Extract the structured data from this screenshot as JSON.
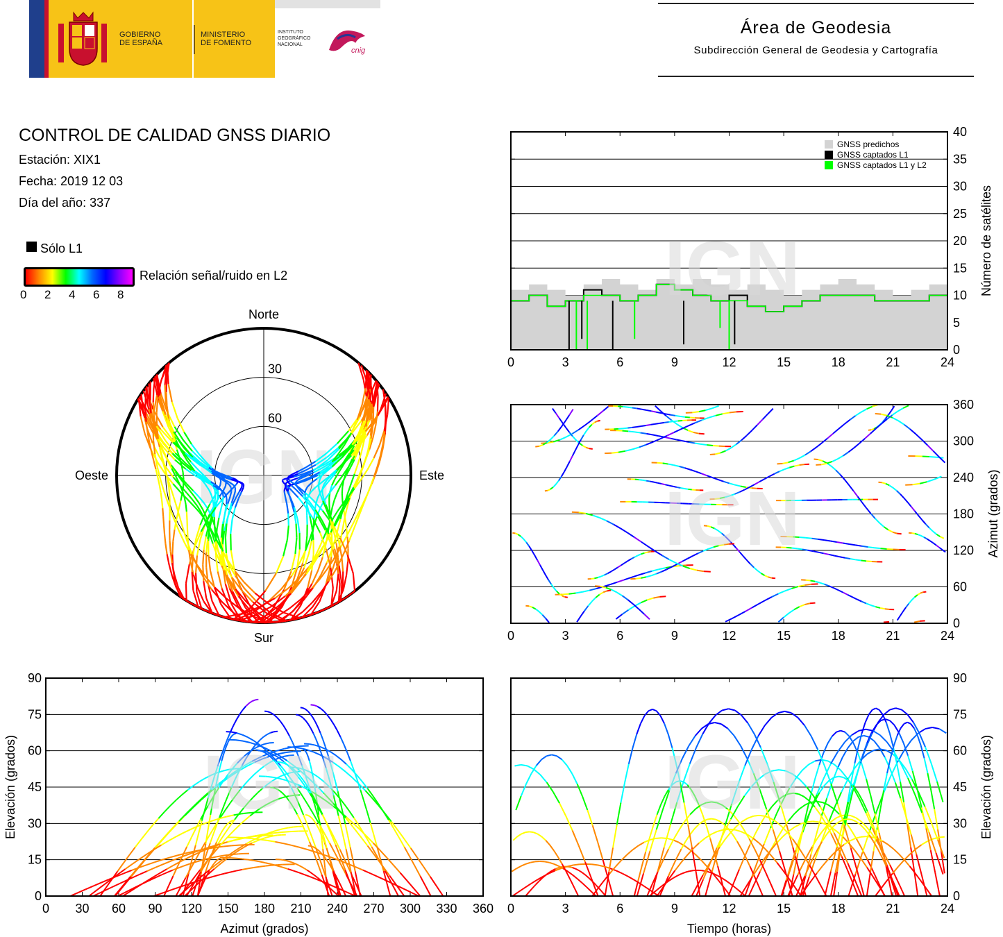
{
  "header": {
    "gobierno": "GOBIERNO\nDE ESPAÑA",
    "ministerio": "MINISTERIO\nDE FOMENTO",
    "instituto": "INSTITUTO\nGEOGRÁFICO\nNACIONAL",
    "cnig": "cnig",
    "area_title": "Área de Geodesia",
    "area_subtitle": "Subdirección General de Geodesia y Cartografía"
  },
  "info": {
    "title": "CONTROL DE CALIDAD GNSS DIARIO",
    "station": "Estación: XIX1",
    "date": "Fecha: 2019 12 03",
    "doy": "Día del año: 337",
    "solo_l1": "Sólo L1",
    "snr_label": "Relación señal/ruido en L2",
    "snr_ticks": [
      "0",
      "2",
      "4",
      "6",
      "8"
    ]
  },
  "watermark": "IGN",
  "colors": {
    "predicted": "#d3d3d3",
    "l1": "#000000",
    "l1l2": "#00ff00",
    "snr_scale": [
      "#ff0000",
      "#ff8800",
      "#ffff00",
      "#00ff00",
      "#00ffff",
      "#0066ff",
      "#0000ff",
      "#8800ff",
      "#ff00ff"
    ]
  },
  "chart_data": [
    {
      "id": "sat_count",
      "type": "area",
      "ylabel": "Número de satélites",
      "xlim": [
        0,
        24
      ],
      "ylim": [
        0,
        40
      ],
      "xticks": [
        "0",
        "3",
        "6",
        "9",
        "12",
        "15",
        "18",
        "21",
        "24"
      ],
      "yticks": [
        "0",
        "5",
        "10",
        "15",
        "20",
        "25",
        "30",
        "35",
        "40"
      ],
      "legend": {
        "placement": "top-right",
        "entries": [
          "GNSS predichos",
          "GNSS captados L1",
          "GNSS captados L1 y L2"
        ]
      },
      "x": [
        0,
        1,
        2,
        3,
        4,
        5,
        6,
        7,
        8,
        9,
        10,
        11,
        12,
        13,
        14,
        15,
        16,
        17,
        18,
        19,
        20,
        21,
        22,
        23,
        24
      ],
      "series": [
        {
          "name": "GNSS predichos",
          "values": [
            11,
            12,
            11,
            10,
            12,
            13,
            12,
            11,
            13,
            12,
            13,
            12,
            11,
            12,
            11,
            10,
            11,
            12,
            13,
            12,
            11,
            10,
            11,
            12,
            11
          ]
        },
        {
          "name": "GNSS captados L1",
          "values": [
            9,
            10,
            8,
            9,
            11,
            10,
            9,
            10,
            12,
            11,
            10,
            9,
            10,
            8,
            7,
            8,
            9,
            10,
            10,
            10,
            9,
            9,
            9,
            10,
            9
          ]
        },
        {
          "name": "GNSS captados L1 y L2",
          "values": [
            9,
            10,
            8,
            9,
            10,
            10,
            9,
            10,
            12,
            11,
            10,
            9,
            9,
            8,
            7,
            8,
            9,
            10,
            10,
            10,
            9,
            9,
            9,
            10,
            9
          ]
        }
      ]
    },
    {
      "id": "skyplot",
      "type": "scatter",
      "directions": {
        "north": "Norte",
        "south": "Sur",
        "east": "Este",
        "west": "Oeste"
      },
      "ring_labels": [
        "30",
        "60"
      ]
    },
    {
      "id": "azimut_time",
      "type": "scatter",
      "ylabel": "Azimut (grados)",
      "xlim": [
        0,
        24
      ],
      "ylim": [
        0,
        360
      ],
      "xticks": [
        "0",
        "3",
        "6",
        "9",
        "12",
        "15",
        "18",
        "21",
        "24"
      ],
      "yticks": [
        "0",
        "60",
        "120",
        "180",
        "240",
        "300",
        "360"
      ]
    },
    {
      "id": "elev_azimut",
      "type": "scatter",
      "xlabel": "Azimut (grados)",
      "ylabel": "Elevación (grados)",
      "xlim": [
        0,
        360
      ],
      "ylim": [
        0,
        90
      ],
      "xticks": [
        "0",
        "30",
        "60",
        "90",
        "120",
        "150",
        "180",
        "210",
        "240",
        "270",
        "300",
        "330",
        "360"
      ],
      "yticks": [
        "0",
        "15",
        "30",
        "45",
        "60",
        "75",
        "90"
      ]
    },
    {
      "id": "elev_time",
      "type": "scatter",
      "xlabel": "Tiempo (horas)",
      "ylabel": "Elevación (grados)",
      "xlim": [
        0,
        24
      ],
      "ylim": [
        0,
        90
      ],
      "xticks": [
        "0",
        "3",
        "6",
        "9",
        "12",
        "15",
        "18",
        "21",
        "24"
      ],
      "yticks": [
        "0",
        "15",
        "30",
        "45",
        "60",
        "75",
        "90"
      ]
    }
  ]
}
